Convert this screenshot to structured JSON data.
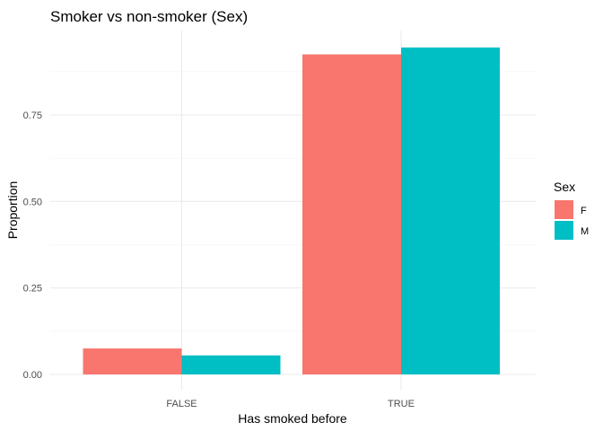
{
  "chart_data": {
    "type": "bar",
    "title": "Smoker vs non-smoker (Sex)",
    "xlabel": "Has smoked before",
    "ylabel": "Proportion",
    "categories": [
      "FALSE",
      "TRUE"
    ],
    "series": [
      {
        "name": "F",
        "values": [
          0.075,
          0.925
        ],
        "color": "#F8766D"
      },
      {
        "name": "M",
        "values": [
          0.055,
          0.945
        ],
        "color": "#00BFC4"
      }
    ],
    "ylim": [
      0,
      1.0
    ],
    "yticks": [
      0.0,
      0.25,
      0.5,
      0.75
    ],
    "ytick_labels": [
      "0.00",
      "0.25",
      "0.50",
      "0.75"
    ],
    "legend": {
      "title": "Sex",
      "position": "right"
    },
    "grid": true
  }
}
